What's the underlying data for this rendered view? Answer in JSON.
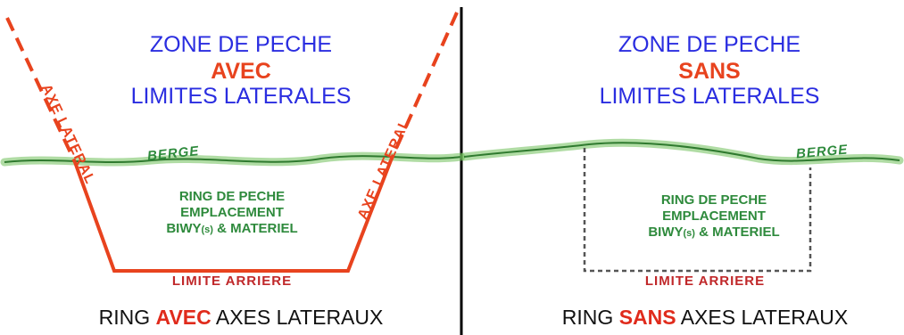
{
  "left_panel": {
    "title_line1": "ZONE DE PECHE",
    "title_line2": "AVEC",
    "title_line3": "LIMITES LATERALES",
    "axe_left": "AXE LATERAL",
    "axe_right": "AXE LATERAL",
    "berge": "BERGE",
    "ring_line1": "RING DE PECHE",
    "ring_line2": "EMPLACEMENT",
    "ring_line3_a": "BIWY",
    "ring_line3_sub": "(s)",
    "ring_line3_b": " & MATERIEL",
    "rear_limit": "LIMITE ARRIERE",
    "caption_a": "RING ",
    "caption_hl": "AVEC",
    "caption_b": " AXES LATERAUX"
  },
  "right_panel": {
    "title_line1": "ZONE DE PECHE",
    "title_line2": "SANS",
    "title_line3": "LIMITES LATERALES",
    "berge": "BERGE",
    "ring_line1": "RING DE PECHE",
    "ring_line2": "EMPLACEMENT",
    "ring_line3_a": "BIWY",
    "ring_line3_sub": "(s)",
    "ring_line3_b": " & MATERIEL",
    "rear_limit": "LIMITE ARRIERE",
    "caption_a": "RING ",
    "caption_hl": "SANS",
    "caption_b": " AXES LATERAUX"
  },
  "colors": {
    "title_blue": "#2a2de0",
    "accent_red": "#e8431e",
    "label_green": "#2e8a3c",
    "bank_green": "#6fbf5a",
    "divider": "#000000"
  }
}
